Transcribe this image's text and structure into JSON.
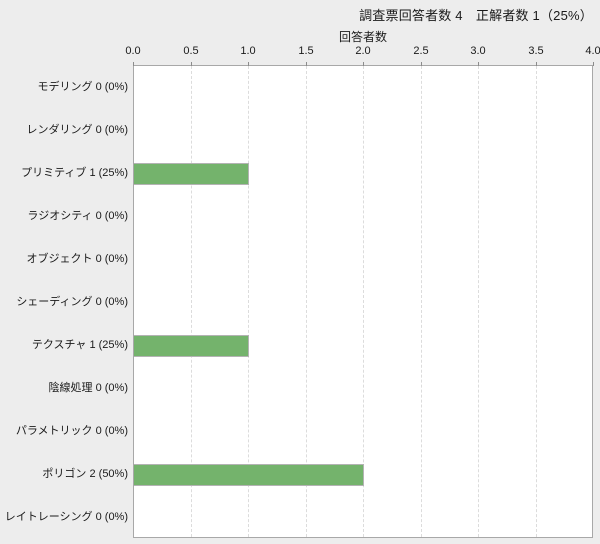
{
  "header": {
    "title": "調査票回答者数 4　正解者数 1（25%）"
  },
  "chart_data": {
    "type": "bar",
    "orientation": "horizontal",
    "title": "調査票回答者数 4　正解者数 1（25%）",
    "axis_label": "回答者数",
    "categories": [
      "モデリング",
      "レンダリング",
      "プリミティブ",
      "ラジオシティ",
      "オブジェクト",
      "シェーディング",
      "テクスチャ",
      "陰線処理",
      "パラメトリック",
      "ポリゴン",
      "レイトレーシング"
    ],
    "category_labels": [
      "モデリング 0 (0%)",
      "レンダリング 0 (0%)",
      "プリミティブ 1 (25%)",
      "ラジオシティ 0 (0%)",
      "オブジェクト 0 (0%)",
      "シェーディング 0 (0%)",
      "テクスチャ 1 (25%)",
      "陰線処理 0 (0%)",
      "パラメトリック 0 (0%)",
      "ポリゴン 2 (50%)",
      "レイトレーシング 0 (0%)"
    ],
    "values": [
      0,
      0,
      1,
      0,
      0,
      0,
      1,
      0,
      0,
      2,
      0
    ],
    "percentages": [
      "0%",
      "0%",
      "25%",
      "0%",
      "0%",
      "0%",
      "25%",
      "0%",
      "0%",
      "50%",
      "0%"
    ],
    "xlim": [
      0,
      4
    ],
    "xticks": [
      "0.0",
      "0.5",
      "1.0",
      "1.5",
      "2.0",
      "2.5",
      "3.0",
      "3.5",
      "4.0"
    ],
    "grid": true,
    "legend_position": "none",
    "colors": {
      "bar_fill": "#74b36c",
      "bar_border": "#b3b3b3",
      "plot_border": "#a8a8a8",
      "gridline": "#dcdcdc",
      "background": "#ededed",
      "plot_background": "#ffffff",
      "text": "#1a1a1a"
    }
  }
}
